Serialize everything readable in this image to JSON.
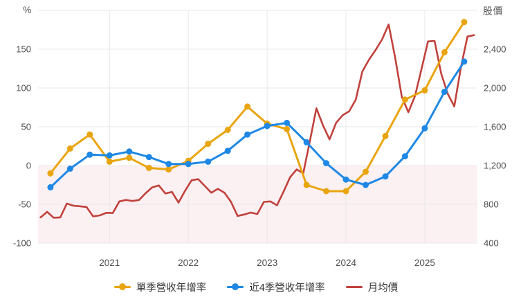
{
  "axes": {
    "left_ticks": [
      {
        "value": 150,
        "label": "150"
      },
      {
        "value": 100,
        "label": "100"
      },
      {
        "value": 50,
        "label": "50"
      },
      {
        "value": 0,
        "label": "0"
      },
      {
        "value": -50,
        "label": "-50"
      },
      {
        "value": -100,
        "label": "-100"
      }
    ],
    "right_ticks": [
      {
        "value": 2400,
        "label": "2,400"
      },
      {
        "value": 2000,
        "label": "2,000"
      },
      {
        "value": 1600,
        "label": "1,600"
      },
      {
        "value": 1200,
        "label": "1,200"
      },
      {
        "value": 800,
        "label": "800"
      },
      {
        "value": 400,
        "label": "400"
      }
    ],
    "year_ticks": [
      {
        "value": 2021,
        "label": "2021"
      },
      {
        "value": 2022,
        "label": "2022"
      },
      {
        "value": 2023,
        "label": "2023"
      },
      {
        "value": 2024,
        "label": "2024"
      },
      {
        "value": 2025,
        "label": "2025"
      }
    ],
    "grid_color": "#e8e8e8",
    "tick_text_color": "#4d4d4d",
    "negative_region_color": "#fbf0f2"
  },
  "chart_data": {
    "type": "line",
    "left_axis": {
      "label": "%",
      "range": [
        -100,
        200
      ]
    },
    "right_axis": {
      "label": "股價",
      "range": [
        400,
        2800
      ]
    },
    "x_range_years": [
      2020.05,
      2025.67
    ],
    "grid": true,
    "legend_position": "bottom",
    "quarters": [
      "2020Q1",
      "2020Q2",
      "2020Q3",
      "2020Q4",
      "2021Q1",
      "2021Q2",
      "2021Q3",
      "2021Q4",
      "2022Q1",
      "2022Q2",
      "2022Q3",
      "2022Q4",
      "2023Q1",
      "2023Q2",
      "2023Q3",
      "2023Q4",
      "2024Q1",
      "2024Q2",
      "2024Q3",
      "2024Q4",
      "2025Q1",
      "2025Q2"
    ],
    "series": [
      {
        "name": "單季營收年增率",
        "axis": "percent",
        "color": "#e9a50f",
        "marker": "line-dot",
        "values": [
          -10,
          22,
          40,
          5,
          10,
          -3,
          -5,
          6,
          28,
          46,
          76,
          54,
          47,
          -25,
          -33,
          -33,
          -8,
          38,
          85,
          97,
          146,
          185
        ]
      },
      {
        "name": "近4季營收年增率",
        "axis": "percent",
        "color": "#1e88e5",
        "marker": "line-dot",
        "values": [
          -28,
          -4,
          14,
          13,
          18,
          11,
          2,
          2,
          5,
          19,
          40,
          51,
          55,
          30,
          3,
          -18,
          -25,
          -14,
          12,
          48,
          95,
          134
        ]
      },
      {
        "name": "月均價",
        "axis": "price",
        "color": "#c1413c",
        "marker": "line",
        "start_month": "2020-02",
        "monthly_values": [
          665,
          722,
          662,
          665,
          808,
          786,
          780,
          772,
          676,
          686,
          712,
          710,
          830,
          845,
          835,
          845,
          915,
          975,
          995,
          912,
          928,
          818,
          940,
          1048,
          1060,
          990,
          920,
          960,
          920,
          825,
          680,
          695,
          715,
          700,
          825,
          830,
          790,
          930,
          1080,
          1160,
          1120,
          1450,
          1790,
          1615,
          1470,
          1640,
          1720,
          1760,
          1880,
          2170,
          2290,
          2390,
          2500,
          2655,
          2310,
          1910,
          1750,
          1915,
          2195,
          2480,
          2485,
          2150,
          1940,
          1810,
          2210,
          2530,
          2545
        ]
      }
    ]
  }
}
